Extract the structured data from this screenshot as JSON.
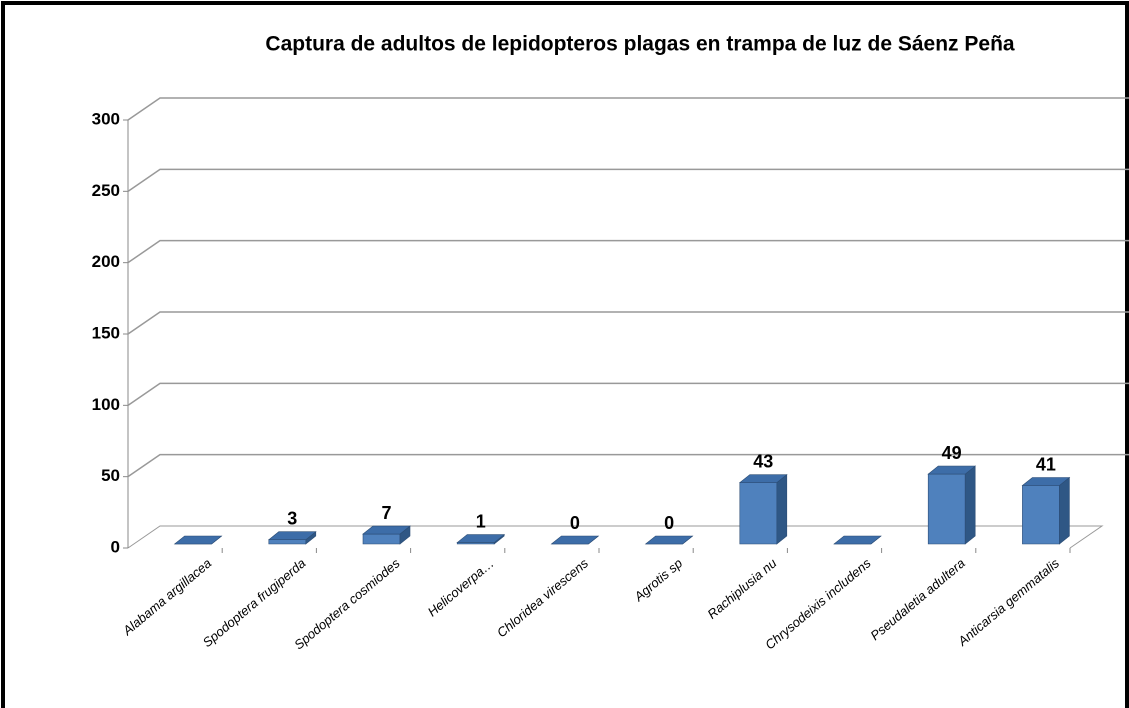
{
  "chart_data": {
    "type": "bar3d",
    "title": "Captura de adultos de lepidopteros plagas en trampa de luz de Sáenz Peña",
    "categories": [
      "Alabama argillacea",
      "Spodoptera frugiperda",
      "Spodoptera cosmiodes",
      "Helicoverpa…",
      "Chloridea virescens",
      "Agrotis sp",
      "Rachiplusia nu",
      "Chrysodeixis includens",
      "Pseudaletia adultera",
      "Anticarsia gemmatalis"
    ],
    "values": [
      0,
      3,
      7,
      1,
      0,
      0,
      43,
      0,
      49,
      41
    ],
    "value_labels": [
      null,
      "3",
      "7",
      "1",
      "0",
      "0",
      "43",
      null,
      "49",
      "41"
    ],
    "color": "#4f81bd",
    "ylim": [
      0,
      300
    ],
    "yticks": [
      0,
      50,
      100,
      150,
      200,
      250,
      300
    ],
    "grid": true
  }
}
